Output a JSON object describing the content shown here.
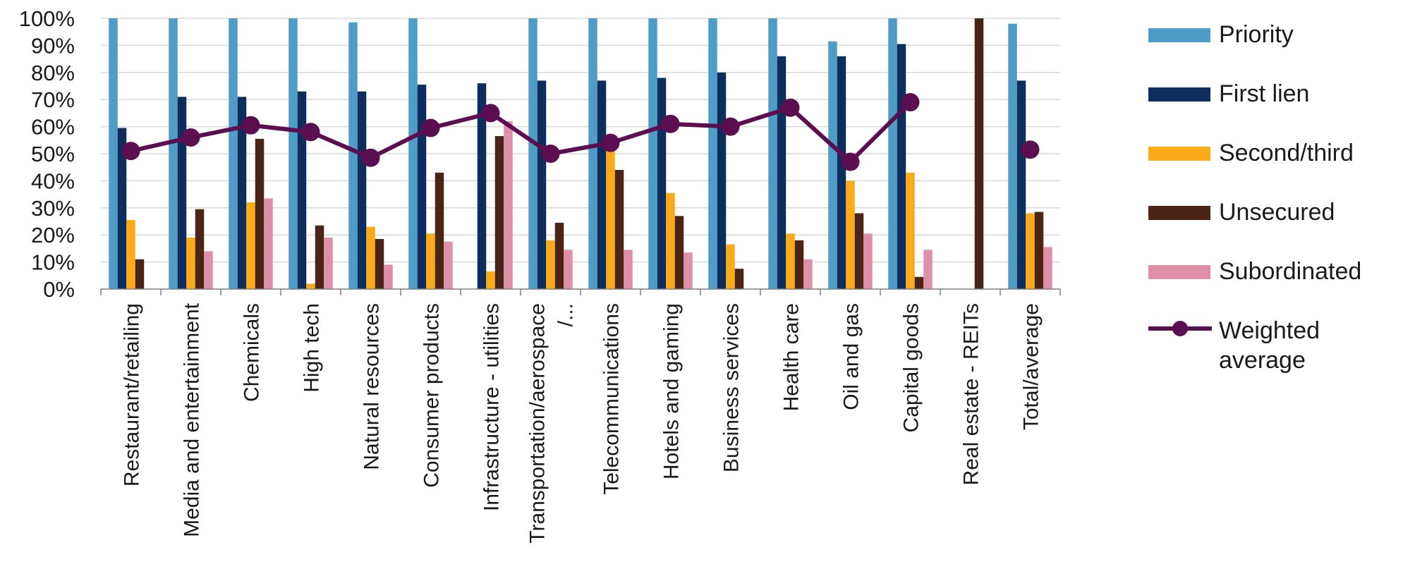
{
  "chart_data": {
    "type": "bar",
    "ylim": [
      0,
      100
    ],
    "yticks": [
      "0%",
      "10%",
      "20%",
      "30%",
      "40%",
      "50%",
      "60%",
      "70%",
      "80%",
      "90%",
      "100%"
    ],
    "grid": true,
    "legend_position": "right",
    "categories": [
      "Restaurant/retailing",
      "Media and entertainment",
      "Chemicals",
      "High tech",
      "Natural resources",
      "Consumer products",
      "Infrastructure - utilities",
      "Transportation/aerospace /...",
      "Telecommunications",
      "Hotels and gaming",
      "Business services",
      "Health care",
      "Oil and gas",
      "Capital goods",
      "Real estate - REITs",
      "Total/average"
    ],
    "series": [
      {
        "name": "Priority",
        "type": "bar",
        "color": "#4f9cc6",
        "values": [
          100,
          100,
          100,
          100,
          98.5,
          100,
          null,
          100,
          100,
          100,
          100,
          100,
          91.5,
          100,
          null,
          98
        ]
      },
      {
        "name": "First lien",
        "type": "bar",
        "color": "#0d2d5c",
        "values": [
          59.5,
          71,
          71,
          73,
          73,
          75.5,
          76,
          77,
          77,
          78,
          80,
          86,
          86,
          90.5,
          null,
          77
        ]
      },
      {
        "name": "Second/third",
        "type": "bar",
        "color": "#fbaa1a",
        "values": [
          25.5,
          19,
          32,
          2,
          23,
          20.5,
          6.5,
          18,
          51,
          35.5,
          16.5,
          20.5,
          40,
          43,
          null,
          28
        ]
      },
      {
        "name": "Unsecured",
        "type": "bar",
        "color": "#4a2416",
        "values": [
          11,
          29.5,
          55.5,
          23.5,
          18.5,
          43,
          56.5,
          24.5,
          44,
          27,
          7.5,
          18,
          28,
          4.5,
          100,
          28.5
        ]
      },
      {
        "name": "Subordinated",
        "type": "bar",
        "color": "#e08fa8",
        "values": [
          null,
          14,
          33.5,
          19,
          9,
          17.5,
          62,
          14.5,
          14.5,
          13.5,
          null,
          11,
          20.5,
          14.5,
          null,
          15.5
        ]
      },
      {
        "name": "Weighted average",
        "type": "line",
        "color": "#5c0f50",
        "values": [
          51,
          56,
          60.5,
          58,
          48.5,
          59.5,
          65,
          50,
          54,
          61,
          60,
          67,
          47,
          69,
          null,
          51.5
        ]
      }
    ]
  },
  "legend": {
    "items": [
      {
        "label": "Priority",
        "color": "#4f9cc6"
      },
      {
        "label": "First lien",
        "color": "#0d2d5c"
      },
      {
        "label": "Second/third",
        "color": "#fbaa1a"
      },
      {
        "label": "Unsecured",
        "color": "#4a2416"
      },
      {
        "label": "Subordinated",
        "color": "#e08fa8"
      }
    ],
    "line_item": {
      "label_line1": "Weighted",
      "label_line2": "average",
      "color": "#5c0f50"
    }
  }
}
